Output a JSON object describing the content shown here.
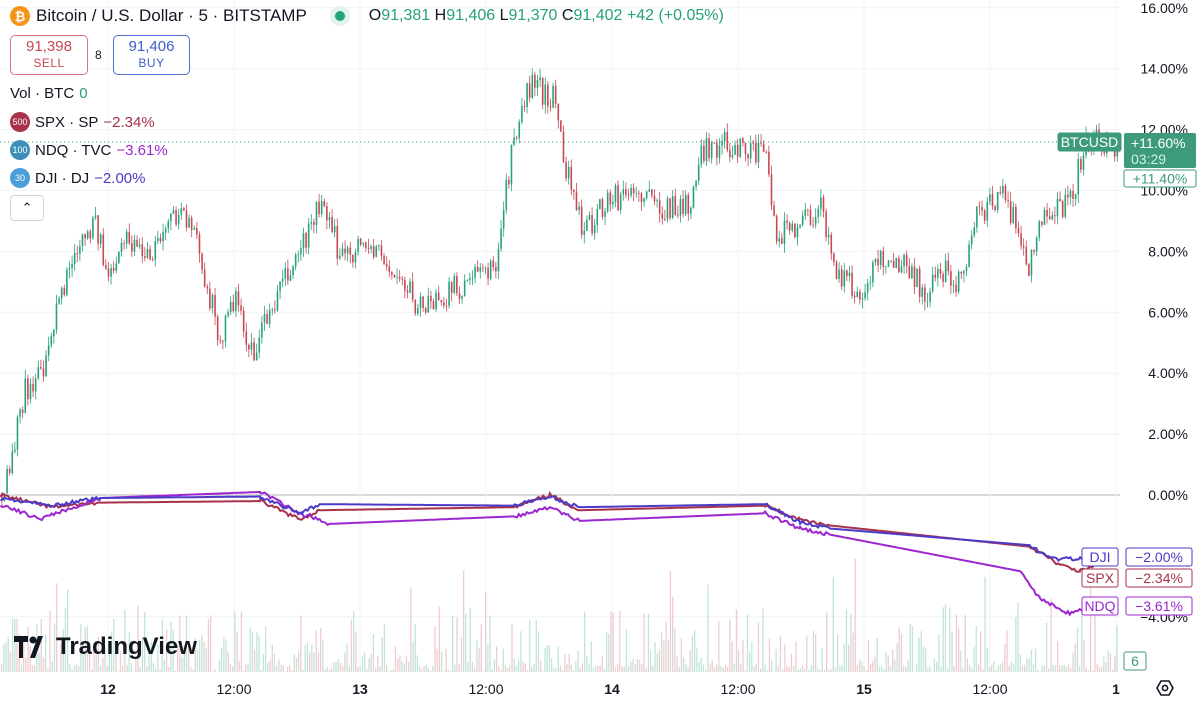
{
  "header": {
    "symbol_title": "Bitcoin / U.S. Dollar · 5 · BITSTAMP",
    "coin_icon": "bitcoin-icon",
    "ohlc": {
      "o_label": "O",
      "o": "91,381",
      "h_label": "H",
      "h": "91,406",
      "l_label": "L",
      "l": "91,370",
      "c_label": "C",
      "c": "91,402",
      "change": "+42 (+0.05%)"
    },
    "sell": {
      "price": "91,398",
      "label": "SELL"
    },
    "buy": {
      "price": "91,406",
      "label": "BUY"
    },
    "spread": "8",
    "volume": {
      "label": "Vol · BTC",
      "value": "0"
    },
    "indicators": [
      {
        "badge": "500",
        "label": "SPX · SP",
        "value": "−2.34%",
        "color": "#a8324a",
        "badge_color": "#a8324a"
      },
      {
        "badge": "100",
        "label": "NDQ · TVC",
        "value": "−3.61%",
        "color": "#9c27d0",
        "badge_color": "#3d8eb9"
      },
      {
        "badge": "30",
        "label": "DJI · DJ",
        "value": "−2.00%",
        "color": "#4b3bc8",
        "badge_color": "#4a9fd8"
      }
    ]
  },
  "logo": "TradingView",
  "colors": {
    "up": "#26a17b",
    "down": "#c84753",
    "btc_tag": "#3d9a7c",
    "grid": "#f0f3fa",
    "zero": "#b2b5be"
  },
  "chart_data": {
    "type": "candlestick",
    "y_axis": {
      "unit": "%",
      "range": [
        -4.5,
        16.5
      ],
      "ticks": [
        "16.00%",
        "14.00%",
        "12.00%",
        "10.00%",
        "8.00%",
        "6.00%",
        "4.00%",
        "2.00%",
        "0.00%",
        "−4.00%"
      ],
      "tick_values": [
        16,
        14,
        12,
        10,
        8,
        6,
        4,
        2,
        0,
        -4
      ]
    },
    "x_axis": {
      "ticks": [
        "12",
        "12:00",
        "13",
        "12:00",
        "14",
        "12:00",
        "15",
        "12:00",
        "1"
      ],
      "tick_times": [
        "12 00:00",
        "12 12:00",
        "13 00:00",
        "13 12:00",
        "14 00:00",
        "14 12:00",
        "15 00:00",
        "15 12:00",
        "16 00:00"
      ]
    },
    "grid": true,
    "btc_percent": [
      [
        "11 13:45",
        0
      ],
      [
        "11 14:40",
        1
      ],
      [
        "11 16:05",
        3.5
      ],
      [
        "11 18:00",
        4
      ],
      [
        "11 19:25",
        6.5
      ],
      [
        "11 21:20",
        8.5
      ],
      [
        "11 22:45",
        9
      ],
      [
        "12 00:00",
        7
      ],
      [
        "12 01:10",
        8.5
      ],
      [
        "12 04:00",
        8
      ],
      [
        "12 06:50",
        9.5
      ],
      [
        "12 08:45",
        8
      ],
      [
        "12 10:40",
        5
      ],
      [
        "12 12:05",
        6.5
      ],
      [
        "12 13:30",
        4.5
      ],
      [
        "12 15:25",
        6
      ],
      [
        "12 18:15",
        8
      ],
      [
        "12 20:10",
        9.5
      ],
      [
        "12 22:05",
        8
      ],
      [
        "13 00:55",
        8.2
      ],
      [
        "13 03:50",
        7
      ],
      [
        "13 05:40",
        6.2
      ],
      [
        "13 07:35",
        6.5
      ],
      [
        "13 10:30",
        7
      ],
      [
        "13 12:50",
        7.5
      ],
      [
        "13 14:20",
        11
      ],
      [
        "13 16:10",
        13.5
      ],
      [
        "13 18:35",
        13
      ],
      [
        "13 19:30",
        11
      ],
      [
        "13 21:25",
        8.5
      ],
      [
        "13 22:50",
        9.5
      ],
      [
        "14 01:45",
        10
      ],
      [
        "14 04:35",
        9.5
      ],
      [
        "14 07:25",
        9.5
      ],
      [
        "14 08:50",
        11.5
      ],
      [
        "14 12:10",
        11.5
      ],
      [
        "14 14:50",
        11
      ],
      [
        "14 15:30",
        8.5
      ],
      [
        "14 17:55",
        9
      ],
      [
        "14 19:50",
        9.5
      ],
      [
        "14 21:15",
        7.5
      ],
      [
        "14 23:35",
        6.5
      ],
      [
        "15 01:30",
        7.8
      ],
      [
        "15 04:25",
        7.5
      ],
      [
        "15 05:50",
        6.5
      ],
      [
        "15 07:40",
        7.5
      ],
      [
        "15 09:05",
        7
      ],
      [
        "15 10:35",
        9
      ],
      [
        "15 13:00",
        10
      ],
      [
        "15 14:25",
        9
      ],
      [
        "15 15:50",
        7.5
      ],
      [
        "15 17:15",
        9.5
      ],
      [
        "15 19:35",
        9.5
      ],
      [
        "15 21:00",
        11.5
      ],
      [
        "15 23:25",
        11.6
      ],
      [
        "16 00:25",
        11.4
      ]
    ],
    "series": [
      {
        "name": "SPX",
        "color": "#a8324a",
        "last": "−2.34%",
        "points": [
          [
            "11 13:45",
            0
          ],
          [
            "11 18:30",
            -0.4
          ],
          [
            "11 23:15",
            -0.25
          ],
          [
            "12 14:30",
            -0.2
          ],
          [
            "12 18:15",
            -0.8
          ],
          [
            "12 20:10",
            -0.5
          ],
          [
            "13 14:45",
            -0.4
          ],
          [
            "13 18:05",
            0
          ],
          [
            "13 20:55",
            -0.5
          ],
          [
            "14 14:35",
            -0.35
          ],
          [
            "14 17:55",
            -0.8
          ],
          [
            "14 20:45",
            -1.0
          ],
          [
            "15 15:50",
            -1.7
          ],
          [
            "15 18:40",
            -2.3
          ],
          [
            "15 20:35",
            -2.5
          ],
          [
            "15 22:00",
            -2.34
          ]
        ]
      },
      {
        "name": "NDQ",
        "color": "#9c27d0",
        "last": "−3.61%",
        "points": [
          [
            "11 13:45",
            -0.3
          ],
          [
            "11 17:30",
            -0.8
          ],
          [
            "11 23:15",
            -0.1
          ],
          [
            "12 14:30",
            0.1
          ],
          [
            "12 18:15",
            -0.6
          ],
          [
            "12 21:05",
            -0.95
          ],
          [
            "13 14:45",
            -0.7
          ],
          [
            "13 18:05",
            -0.4
          ],
          [
            "13 20:55",
            -0.85
          ],
          [
            "14 14:35",
            -0.6
          ],
          [
            "14 17:55",
            -1.1
          ],
          [
            "14 20:45",
            -1.3
          ],
          [
            "15 14:50",
            -2.5
          ],
          [
            "15 16:45",
            -3.4
          ],
          [
            "15 19:35",
            -3.9
          ],
          [
            "15 22:00",
            -3.61
          ]
        ]
      },
      {
        "name": "DJI",
        "color": "#4b3bc8",
        "last": "−2.00%",
        "points": [
          [
            "11 13:45",
            -0.1
          ],
          [
            "11 18:30",
            -0.35
          ],
          [
            "11 23:15",
            -0.1
          ],
          [
            "12 14:30",
            -0.05
          ],
          [
            "12 18:15",
            -0.6
          ],
          [
            "12 20:10",
            -0.3
          ],
          [
            "13 14:45",
            -0.35
          ],
          [
            "13 18:05",
            -0.05
          ],
          [
            "13 20:55",
            -0.4
          ],
          [
            "14 14:35",
            -0.3
          ],
          [
            "14 17:55",
            -0.9
          ],
          [
            "14 20:45",
            -1.1
          ],
          [
            "15 15:50",
            -1.65
          ],
          [
            "15 17:45",
            -2.1
          ],
          [
            "15 20:35",
            -2.1
          ],
          [
            "15 22:00",
            -2.0
          ]
        ]
      }
    ],
    "btc_tag": {
      "label": "BTCUSD",
      "value": "+11.60%",
      "countdown": "03:29",
      "last_close": "+11.40%"
    },
    "volume_scale_label": "6"
  }
}
